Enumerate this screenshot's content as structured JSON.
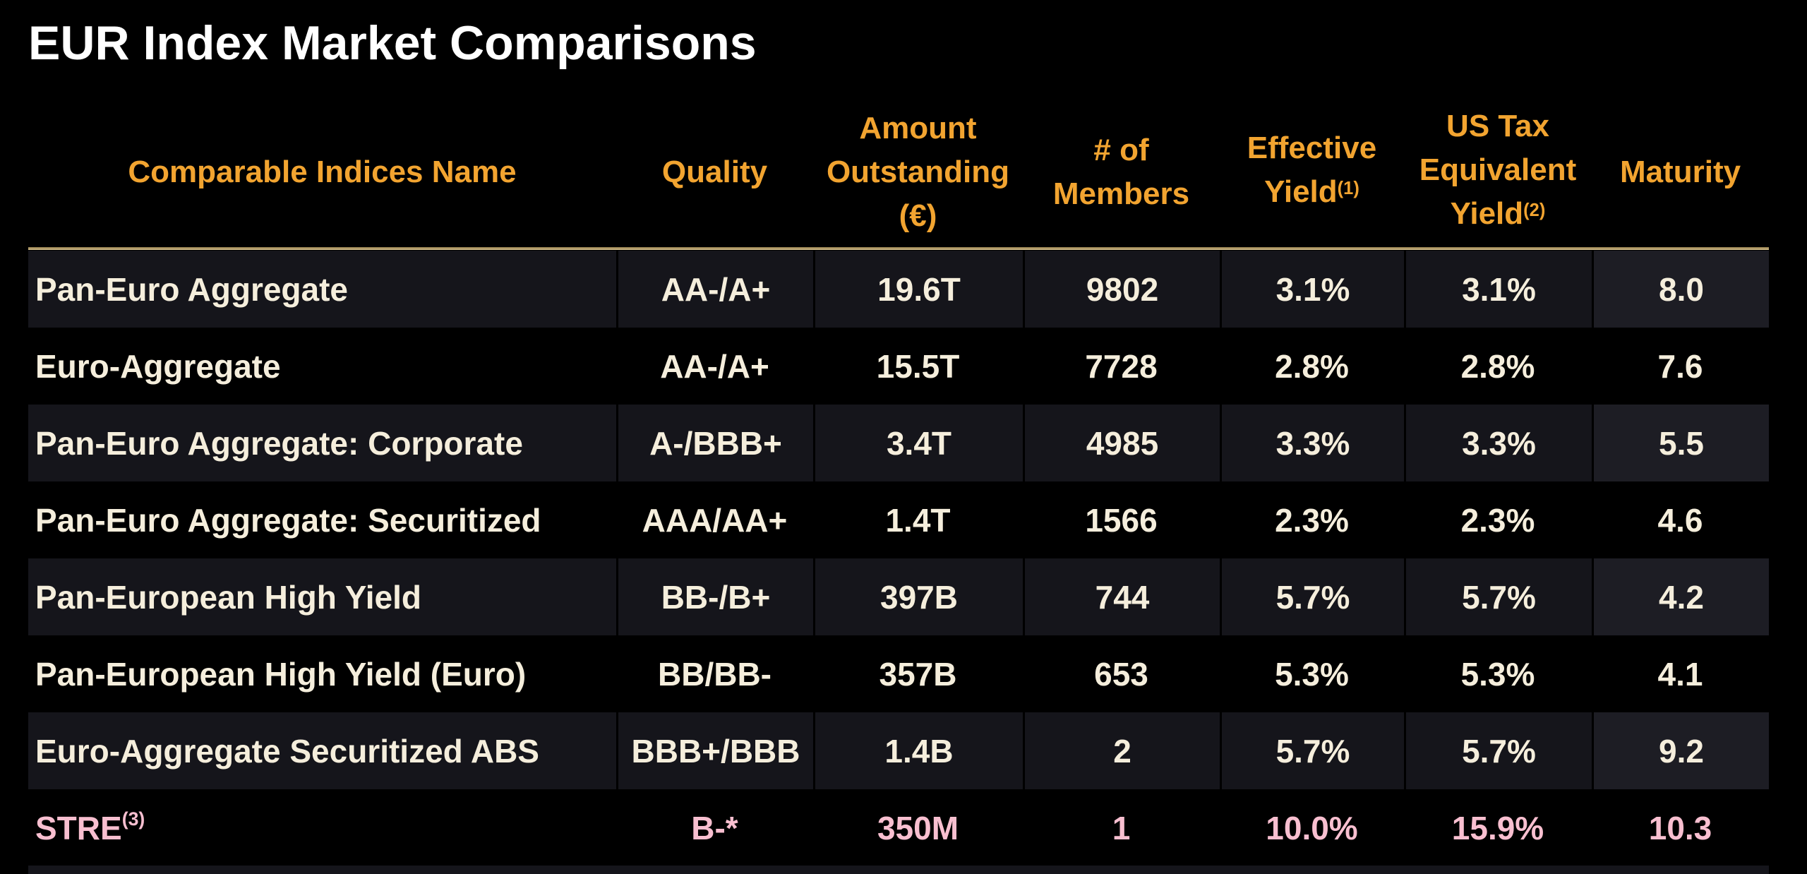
{
  "title": "EUR Index Market Comparisons",
  "colors": {
    "background": "#000000",
    "header_text": "#F2A430",
    "body_text": "#F5EEDC",
    "highlight_text": "#F8BFD0",
    "divider": "#C7B078",
    "stripe_row": "#15151B"
  },
  "table": {
    "headers": {
      "name": "Comparable Indices Name",
      "quality": "Quality",
      "amount_lines": [
        "Amount",
        "Outstanding",
        "(€)"
      ],
      "members_lines": [
        "# of",
        "Members"
      ],
      "effective_yield_lines": [
        "Effective",
        "Yield"
      ],
      "effective_yield_sup": "(1)",
      "us_tax_lines": [
        "US Tax",
        "Equivalent",
        "Yield"
      ],
      "us_tax_sup": "(2)",
      "maturity": "Maturity"
    },
    "rows": [
      {
        "name": "Pan-Euro Aggregate",
        "quality": "AA-/A+",
        "amount": "19.6T",
        "members": "9802",
        "effective_yield": "3.1%",
        "us_tax_equivalent_yield": "3.1%",
        "maturity": "8.0"
      },
      {
        "name": "Euro-Aggregate",
        "quality": "AA-/A+",
        "amount": "15.5T",
        "members": "7728",
        "effective_yield": "2.8%",
        "us_tax_equivalent_yield": "2.8%",
        "maturity": "7.6"
      },
      {
        "name": "Pan-Euro Aggregate: Corporate",
        "quality": "A-/BBB+",
        "amount": "3.4T",
        "members": "4985",
        "effective_yield": "3.3%",
        "us_tax_equivalent_yield": "3.3%",
        "maturity": "5.5"
      },
      {
        "name": "Pan-Euro Aggregate: Securitized",
        "quality": "AAA/AA+",
        "amount": "1.4T",
        "members": "1566",
        "effective_yield": "2.3%",
        "us_tax_equivalent_yield": "2.3%",
        "maturity": "4.6"
      },
      {
        "name": "Pan-European High Yield",
        "quality": "BB-/B+",
        "amount": "397B",
        "members": "744",
        "effective_yield": "5.7%",
        "us_tax_equivalent_yield": "5.7%",
        "maturity": "4.2"
      },
      {
        "name": "Pan-European High Yield (Euro)",
        "quality": "BB/BB-",
        "amount": "357B",
        "members": "653",
        "effective_yield": "5.3%",
        "us_tax_equivalent_yield": "5.3%",
        "maturity": "4.1"
      },
      {
        "name": "Euro-Aggregate Securitized ABS",
        "quality": "BBB+/BBB",
        "amount": "1.4B",
        "members": "2",
        "effective_yield": "5.7%",
        "us_tax_equivalent_yield": "5.7%",
        "maturity": "9.2"
      },
      {
        "name": "STRE",
        "name_sup": "(3)",
        "quality": "B-*",
        "amount": "350M",
        "members": "1",
        "effective_yield": "10.0%",
        "us_tax_equivalent_yield": "15.9%",
        "maturity": "10.3",
        "highlight": true
      }
    ]
  }
}
